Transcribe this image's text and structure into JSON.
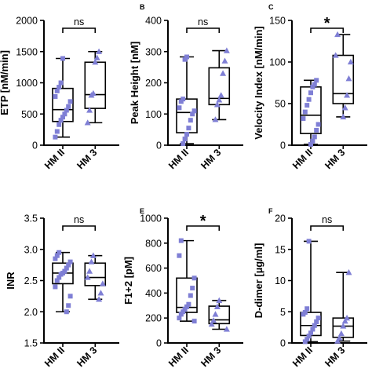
{
  "figure": {
    "colors": {
      "marker": "#7f7fd5",
      "box": "#000000",
      "background": "#ffffff"
    }
  },
  "chart_data": [
    {
      "id": "etp",
      "panel": "",
      "type": "box",
      "ylabel": "ETP [nM/min]",
      "ylim": [
        0,
        2000
      ],
      "yticks": [
        0,
        500,
        1000,
        1500,
        2000
      ],
      "categories": [
        "HM II",
        "HM 3"
      ],
      "boxes": [
        {
          "min": 130,
          "q1": 380,
          "median": 570,
          "q3": 910,
          "max": 1390
        },
        {
          "min": 360,
          "q1": 590,
          "median": 810,
          "q3": 1330,
          "max": 1500
        }
      ],
      "points": [
        [
          130,
          220,
          330,
          400,
          450,
          500,
          560,
          620,
          700,
          780,
          870,
          930,
          1000,
          1390
        ],
        [
          360,
          560,
          800,
          830,
          1330,
          1400,
          1500
        ]
      ],
      "significance": "ns"
    },
    {
      "id": "peak",
      "panel": "B",
      "type": "box",
      "ylabel": "Peak Height [nM]",
      "ylim": [
        0,
        400
      ],
      "yticks": [
        0,
        100,
        200,
        300,
        400
      ],
      "categories": [
        "HM II",
        "HM 3"
      ],
      "boxes": [
        {
          "min": 5,
          "q1": 40,
          "median": 105,
          "q3": 148,
          "max": 283
        },
        {
          "min": 82,
          "q1": 130,
          "median": 150,
          "q3": 248,
          "max": 303
        }
      ],
      "points": [
        [
          5,
          20,
          35,
          55,
          80,
          100,
          110,
          120,
          140,
          148,
          275,
          283
        ],
        [
          82,
          130,
          145,
          160,
          230,
          270,
          303
        ]
      ],
      "significance": "ns"
    },
    {
      "id": "vi",
      "panel": "C",
      "type": "box",
      "ylabel": "Velocity Index [nM/min]",
      "ylim": [
        0,
        150
      ],
      "yticks": [
        0,
        50,
        100,
        150
      ],
      "categories": [
        "HM II",
        "HM 3"
      ],
      "boxes": [
        {
          "min": 1,
          "q1": 14,
          "median": 36,
          "q3": 70,
          "max": 78
        },
        {
          "min": 34,
          "q1": 50,
          "median": 62,
          "q3": 108,
          "max": 133
        }
      ],
      "points": [
        [
          1,
          5,
          10,
          18,
          25,
          32,
          40,
          48,
          55,
          63,
          70,
          73,
          78
        ],
        [
          34,
          45,
          60,
          80,
          100,
          108,
          133
        ]
      ],
      "significance": "*"
    },
    {
      "id": "inr",
      "panel": "",
      "type": "box",
      "ylabel": "INR",
      "ylim": [
        1.5,
        3.5
      ],
      "yticks": [
        1.5,
        2.0,
        2.5,
        3.0,
        3.5
      ],
      "categories": [
        "HM II",
        "HM 3"
      ],
      "boxes": [
        {
          "min": 2.0,
          "q1": 2.45,
          "median": 2.62,
          "q3": 2.78,
          "max": 2.95
        },
        {
          "min": 2.2,
          "q1": 2.42,
          "median": 2.55,
          "q3": 2.78,
          "max": 2.9
        }
      ],
      "points": [
        [
          2.0,
          2.1,
          2.25,
          2.4,
          2.5,
          2.55,
          2.6,
          2.62,
          2.65,
          2.7,
          2.75,
          2.8,
          2.85,
          2.9,
          2.95
        ],
        [
          2.2,
          2.3,
          2.45,
          2.55,
          2.65,
          2.8,
          2.9
        ]
      ],
      "significance": "ns"
    },
    {
      "id": "f12",
      "panel": "E",
      "type": "box",
      "ylabel": "F1+2 [pM]",
      "ylim": [
        0,
        1000
      ],
      "yticks": [
        0,
        200,
        400,
        600,
        800,
        1000
      ],
      "categories": [
        "HM II",
        "HM 3"
      ],
      "boxes": [
        {
          "min": 175,
          "q1": 245,
          "median": 285,
          "q3": 520,
          "max": 820
        },
        {
          "min": 110,
          "q1": 155,
          "median": 185,
          "q3": 295,
          "max": 340
        }
      ],
      "points": [
        [
          175,
          200,
          230,
          250,
          270,
          290,
          310,
          380,
          440,
          520,
          700,
          820
        ],
        [
          110,
          150,
          180,
          230,
          290,
          340
        ]
      ],
      "significance": "*"
    },
    {
      "id": "ddimer",
      "panel": "F",
      "type": "box",
      "ylabel": "D-dimer [µg/ml]",
      "ylim": [
        0,
        20
      ],
      "yticks": [
        0,
        5,
        10,
        15,
        20
      ],
      "categories": [
        "HM II",
        "HM 3"
      ],
      "boxes": [
        {
          "min": 0.2,
          "q1": 1.2,
          "median": 2.8,
          "q3": 4.9,
          "max": 16.3
        },
        {
          "min": 0.3,
          "q1": 0.9,
          "median": 2.7,
          "q3": 4.0,
          "max": 11.3
        }
      ],
      "points": [
        [
          0.2,
          0.6,
          1.1,
          1.6,
          2.2,
          2.8,
          3.4,
          4.0,
          4.6,
          4.9,
          5.5,
          16.3
        ],
        [
          0.3,
          0.8,
          1.5,
          2.7,
          3.5,
          4.0,
          11.3
        ]
      ],
      "significance": "ns"
    }
  ]
}
